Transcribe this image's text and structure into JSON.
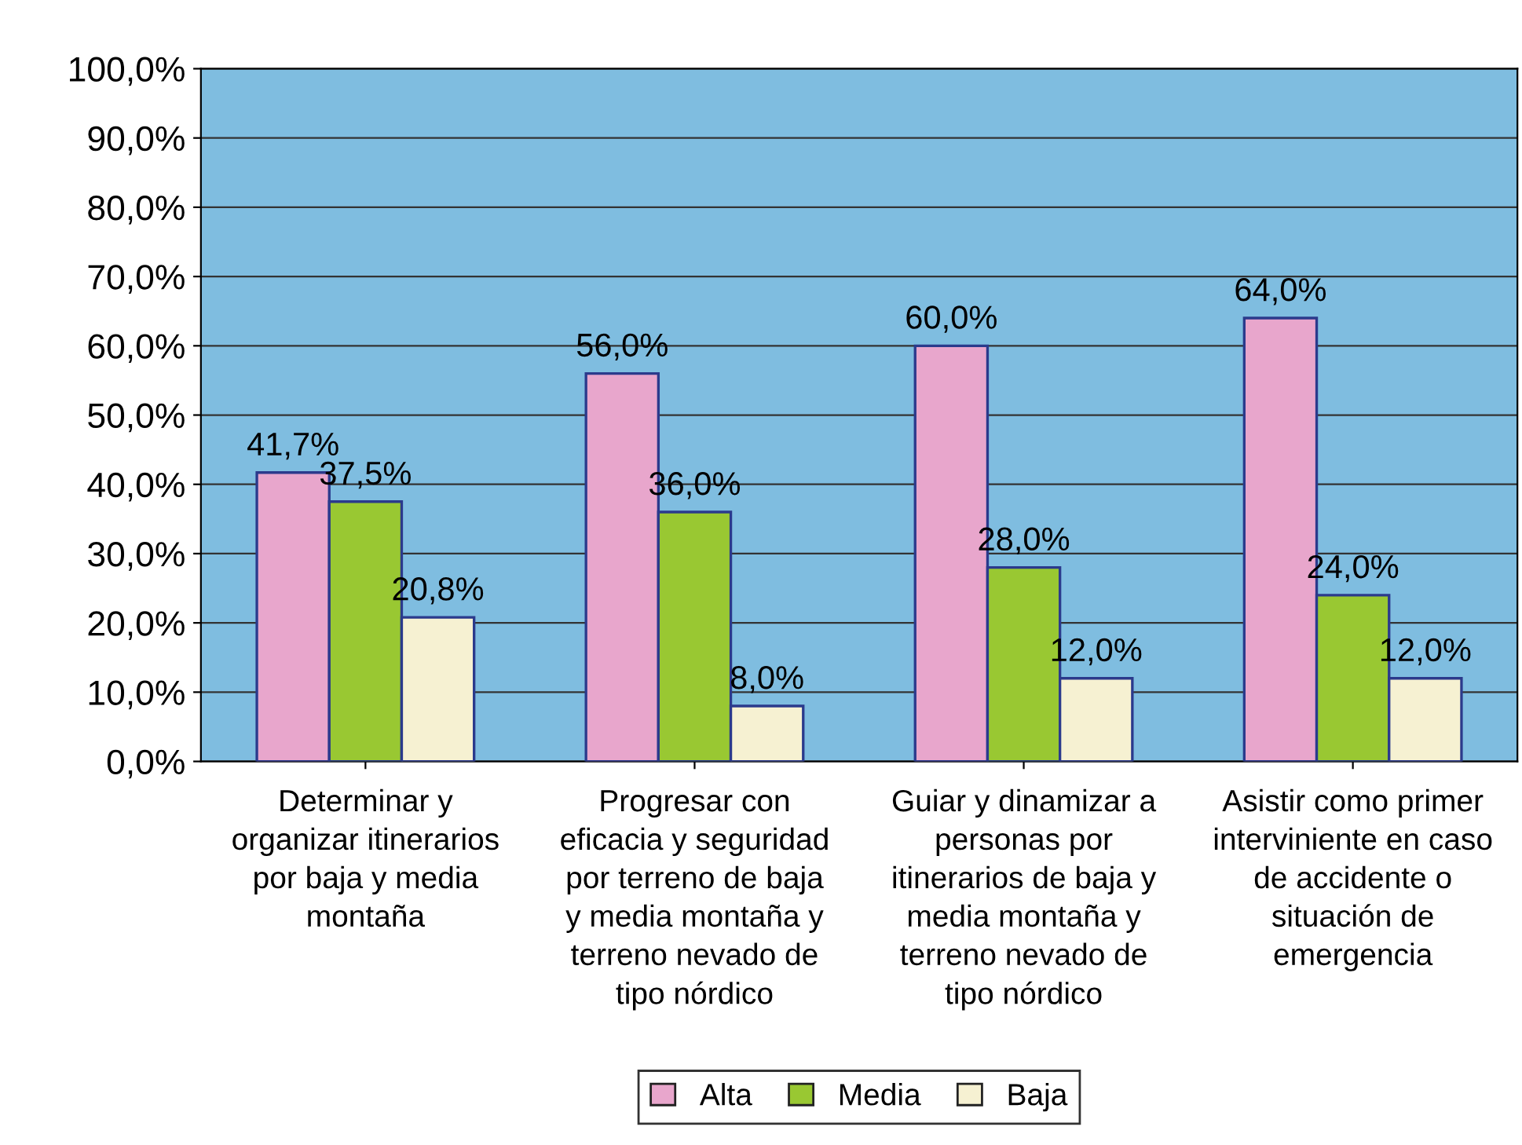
{
  "chart_data": {
    "type": "bar",
    "categories": [
      "Determinar y\norganizar itinerarios\npor baja y media\nmontaña",
      "Progresar con\neficacia y seguridad\npor terreno de baja\ny media montaña y\nterreno nevado de\ntipo nórdico",
      "Guiar y dinamizar a\npersonas por\nitinerarios de baja y\nmedia montaña y\nterreno nevado de\ntipo nórdico",
      "Asistir como primer\ninterviniente en caso\nde accidente o\nsituación de\nemergencia"
    ],
    "series": [
      {
        "name": "Alta",
        "color": "#e8a6cc",
        "values": [
          41.7,
          56.0,
          60.0,
          64.0
        ],
        "value_labels": [
          "41,7%",
          "56,0%",
          "60,0%",
          "64,0%"
        ]
      },
      {
        "name": "Media",
        "color": "#99c832",
        "values": [
          37.5,
          36.0,
          28.0,
          24.0
        ],
        "value_labels": [
          "37,5%",
          "36,0%",
          "28,0%",
          "24,0%"
        ]
      },
      {
        "name": "Baja",
        "color": "#f6f1d2",
        "values": [
          20.8,
          8.0,
          12.0,
          12.0
        ],
        "value_labels": [
          "20,8%",
          "8,0%",
          "12,0%",
          "12,0%"
        ]
      }
    ],
    "ylim": [
      0,
      100
    ],
    "yticks": [
      {
        "value": 0,
        "label": "0,0%"
      },
      {
        "value": 10,
        "label": "10,0%"
      },
      {
        "value": 20,
        "label": "20,0%"
      },
      {
        "value": 30,
        "label": "30,0%"
      },
      {
        "value": 40,
        "label": "40,0%"
      },
      {
        "value": 50,
        "label": "50,0%"
      },
      {
        "value": 60,
        "label": "60,0%"
      },
      {
        "value": 70,
        "label": "70,0%"
      },
      {
        "value": 80,
        "label": "80,0%"
      },
      {
        "value": 90,
        "label": "90,0%"
      },
      {
        "value": 100,
        "label": "100,0%"
      }
    ],
    "grid": "y",
    "legend": "bottom"
  }
}
